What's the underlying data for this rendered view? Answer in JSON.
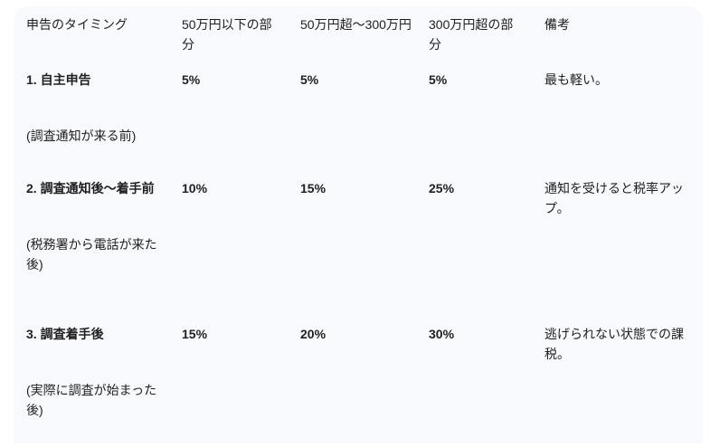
{
  "table": {
    "headers": [
      "申告のタイミング",
      "50万円以下の部分",
      "50万円超〜300万円",
      "300万円超の部分",
      "備考"
    ],
    "rows": [
      {
        "timing": "1. 自主申告",
        "note": "(調査通知が来る前)",
        "rate_under_50": "5%",
        "rate_50_300": "5%",
        "rate_over_300": "5%",
        "remarks": "最も軽い。"
      },
      {
        "timing": "2. 調査通知後〜着手前",
        "note": "(税務署から電話が来た後)",
        "rate_under_50": "10%",
        "rate_50_300": "15%",
        "rate_over_300": "25%",
        "remarks": "通知を受けると税率アップ。"
      },
      {
        "timing": "3. 調査着手後",
        "note": "(実際に調査が始まった後)",
        "rate_under_50": "15%",
        "rate_50_300": "20%",
        "rate_over_300": "30%",
        "remarks": "逃げられない状態での課税。"
      }
    ]
  }
}
